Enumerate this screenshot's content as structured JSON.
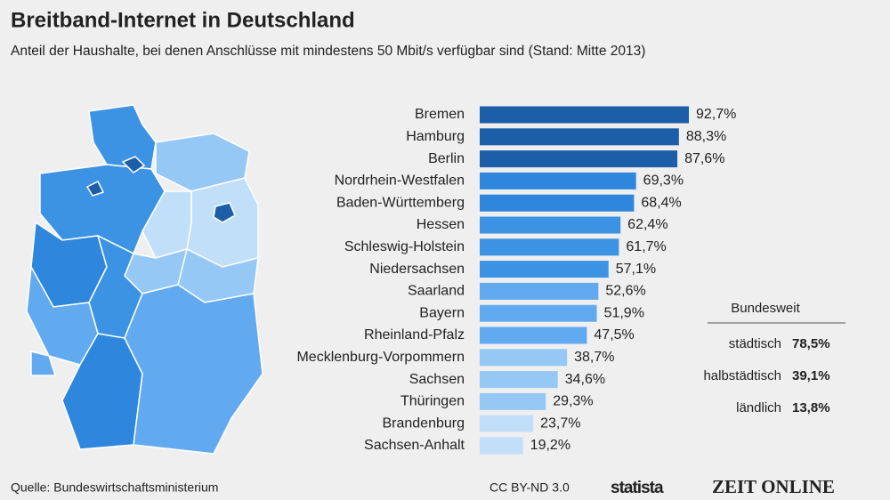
{
  "chart_data": {
    "type": "bar",
    "title": "Breitband-Internet in Deutschland",
    "subtitle": "Anteil der Haushalte, bei denen Anschlüsse mit mindestens 50 Mbit/s verfügbar sind (Stand: Mitte 2013)",
    "categories": [
      "Bremen",
      "Hamburg",
      "Berlin",
      "Nordrhein-Westfalen",
      "Baden-Württemberg",
      "Hessen",
      "Schleswig-Holstein",
      "Niedersachsen",
      "Saarland",
      "Bayern",
      "Rheinland-Pfalz",
      "Mecklenburg-Vorpommern",
      "Sachsen",
      "Thüringen",
      "Brandenburg",
      "Sachsen-Anhalt"
    ],
    "values": [
      92.7,
      88.3,
      87.6,
      69.3,
      68.4,
      62.4,
      61.7,
      57.1,
      52.6,
      51.9,
      47.5,
      38.7,
      34.6,
      29.3,
      23.7,
      19.2
    ],
    "value_labels": [
      "92,7%",
      "88,3%",
      "87,6%",
      "69,3%",
      "68,4%",
      "62,4%",
      "61,7%",
      "57,1%",
      "52,6%",
      "51,9%",
      "47,5%",
      "38,7%",
      "34,6%",
      "29,3%",
      "23,7%",
      "19,2%"
    ],
    "colors": [
      "#1d5ea8",
      "#1d5ea8",
      "#1d5ea8",
      "#2e87dc",
      "#2e87dc",
      "#3d93e3",
      "#3d93e3",
      "#3d93e3",
      "#62aaf0",
      "#62aaf0",
      "#62aaf0",
      "#96c8f5",
      "#96c8f5",
      "#96c8f5",
      "#c2dffa",
      "#c2dffa"
    ]
  },
  "summary": {
    "title": "Bundesweit",
    "rows": [
      [
        "städtisch",
        "78,5%"
      ],
      [
        "halbstädtisch",
        "39,1%"
      ],
      [
        "ländlich",
        "13,8%"
      ]
    ]
  },
  "footer": {
    "source": "Quelle: Bundeswirtschaftsministerium",
    "license": "CC BY-ND 3.0",
    "brand": "statista",
    "partner": "ZEIT ONLINE"
  }
}
